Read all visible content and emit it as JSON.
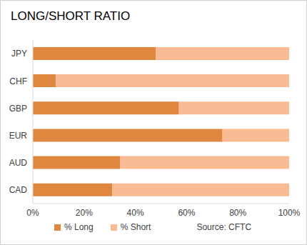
{
  "chart_data": {
    "type": "bar",
    "title": "LONG/SHORT RATIO",
    "orientation": "horizontal",
    "stacked": true,
    "categories": [
      "JPY",
      "CHF",
      "GBP",
      "EUR",
      "AUD",
      "CAD"
    ],
    "series": [
      {
        "name": "% Long",
        "color": "#e0873f",
        "values": [
          48,
          9,
          57,
          74,
          34,
          31
        ]
      },
      {
        "name": "% Short",
        "color": "#f8bb94",
        "values": [
          52,
          91,
          43,
          26,
          66,
          69
        ]
      }
    ],
    "xlim": [
      0,
      100
    ],
    "xticks": [
      {
        "value": 0,
        "label": "0%"
      },
      {
        "value": 20,
        "label": "20%"
      },
      {
        "value": 40,
        "label": "40%"
      },
      {
        "value": 60,
        "label": "60%"
      },
      {
        "value": 80,
        "label": "80%"
      },
      {
        "value": 100,
        "label": "100%"
      }
    ],
    "grid": false,
    "legend": "bottom",
    "annotation": "Source: CFTC"
  }
}
